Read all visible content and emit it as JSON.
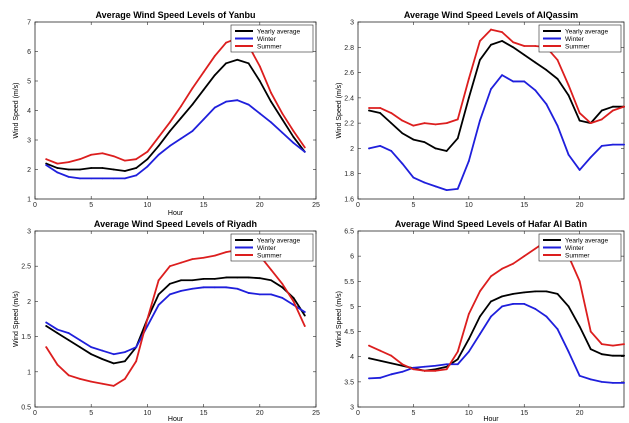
{
  "colors": {
    "yearly": "#000000",
    "winter": "#1f1fdc",
    "summer": "#dc1e1e"
  },
  "chart_data": [
    {
      "type": "line",
      "title": "Average Wind Speed Levels of Yanbu",
      "xlabel": "Hour",
      "ylabel": "Wind Speed (m/s)",
      "xlim": [
        0,
        25
      ],
      "ylim": [
        1,
        7
      ],
      "xticks": [
        0,
        5,
        10,
        15,
        20,
        25
      ],
      "yticks": [
        1,
        2,
        3,
        4,
        5,
        6,
        7
      ],
      "legend_position": "top-right",
      "x": [
        1,
        2,
        3,
        4,
        5,
        6,
        7,
        8,
        9,
        10,
        11,
        12,
        13,
        14,
        15,
        16,
        17,
        18,
        19,
        20,
        21,
        22,
        23,
        24
      ],
      "series": [
        {
          "name": "Yearly average",
          "color_key": "yearly",
          "values": [
            2.2,
            2.05,
            2.0,
            2.0,
            2.05,
            2.05,
            2.0,
            1.95,
            2.05,
            2.35,
            2.8,
            3.3,
            3.75,
            4.2,
            4.7,
            5.2,
            5.6,
            5.72,
            5.6,
            5.0,
            4.3,
            3.7,
            3.1,
            2.6
          ]
        },
        {
          "name": "Winter",
          "color_key": "winter",
          "values": [
            2.15,
            1.9,
            1.75,
            1.7,
            1.7,
            1.7,
            1.7,
            1.7,
            1.8,
            2.1,
            2.5,
            2.8,
            3.05,
            3.3,
            3.7,
            4.1,
            4.3,
            4.35,
            4.2,
            3.9,
            3.6,
            3.25,
            2.9,
            2.6
          ]
        },
        {
          "name": "Summer",
          "color_key": "summer",
          "values": [
            2.35,
            2.2,
            2.25,
            2.35,
            2.5,
            2.55,
            2.45,
            2.3,
            2.35,
            2.6,
            3.1,
            3.6,
            4.15,
            4.75,
            5.3,
            5.85,
            6.3,
            6.45,
            6.2,
            5.5,
            4.6,
            3.9,
            3.3,
            2.75
          ]
        }
      ]
    },
    {
      "type": "line",
      "title": "Average Wind Speed Levels of AlQassim",
      "xlabel": "",
      "ylabel": "Wind Speed (m/s)",
      "xlim": [
        0,
        24
      ],
      "ylim": [
        1.6,
        3
      ],
      "xticks": [
        0,
        5,
        10,
        15,
        20
      ],
      "yticks": [
        1.6,
        1.8,
        2,
        2.2,
        2.4,
        2.6,
        2.8,
        3
      ],
      "legend_position": "top-right",
      "x": [
        1,
        2,
        3,
        4,
        5,
        6,
        7,
        8,
        9,
        10,
        11,
        12,
        13,
        14,
        15,
        16,
        17,
        18,
        19,
        20,
        21,
        22,
        23,
        24
      ],
      "series": [
        {
          "name": "Yearly average",
          "color_key": "yearly",
          "values": [
            2.3,
            2.28,
            2.2,
            2.12,
            2.07,
            2.05,
            2.0,
            1.98,
            2.08,
            2.4,
            2.7,
            2.82,
            2.85,
            2.8,
            2.74,
            2.68,
            2.62,
            2.55,
            2.42,
            2.22,
            2.2,
            2.3,
            2.33,
            2.33
          ]
        },
        {
          "name": "Winter",
          "color_key": "winter",
          "values": [
            2.0,
            2.02,
            1.98,
            1.88,
            1.77,
            1.73,
            1.7,
            1.67,
            1.68,
            1.9,
            2.22,
            2.47,
            2.58,
            2.53,
            2.53,
            2.46,
            2.35,
            2.18,
            1.95,
            1.83,
            1.93,
            2.02,
            2.03,
            2.03
          ]
        },
        {
          "name": "Summer",
          "color_key": "summer",
          "values": [
            2.32,
            2.32,
            2.28,
            2.22,
            2.18,
            2.2,
            2.19,
            2.2,
            2.23,
            2.55,
            2.85,
            2.94,
            2.92,
            2.84,
            2.81,
            2.81,
            2.8,
            2.7,
            2.5,
            2.28,
            2.2,
            2.23,
            2.3,
            2.33
          ]
        }
      ]
    },
    {
      "type": "line",
      "title": "Average Wind Speed Levels of Riyadh",
      "xlabel": "Hour",
      "ylabel": "Wind Speed (m/s)",
      "xlim": [
        0,
        25
      ],
      "ylim": [
        0.5,
        3
      ],
      "xticks": [
        0,
        5,
        10,
        15,
        20,
        25
      ],
      "yticks": [
        0.5,
        1,
        1.5,
        2,
        2.5,
        3
      ],
      "legend_position": "top-right",
      "x": [
        1,
        2,
        3,
        4,
        5,
        6,
        7,
        8,
        9,
        10,
        11,
        12,
        13,
        14,
        15,
        16,
        17,
        18,
        19,
        20,
        21,
        22,
        23,
        24
      ],
      "series": [
        {
          "name": "Yearly average",
          "color_key": "yearly",
          "values": [
            1.65,
            1.55,
            1.45,
            1.35,
            1.25,
            1.18,
            1.12,
            1.15,
            1.35,
            1.75,
            2.1,
            2.25,
            2.3,
            2.3,
            2.32,
            2.32,
            2.34,
            2.34,
            2.34,
            2.33,
            2.3,
            2.2,
            2.05,
            1.8
          ]
        },
        {
          "name": "Winter",
          "color_key": "winter",
          "values": [
            1.7,
            1.6,
            1.55,
            1.45,
            1.35,
            1.3,
            1.25,
            1.28,
            1.35,
            1.65,
            1.95,
            2.1,
            2.15,
            2.18,
            2.2,
            2.2,
            2.2,
            2.18,
            2.12,
            2.1,
            2.1,
            2.05,
            1.95,
            1.85
          ]
        },
        {
          "name": "Summer",
          "color_key": "summer",
          "values": [
            1.35,
            1.1,
            0.95,
            0.9,
            0.86,
            0.83,
            0.8,
            0.9,
            1.15,
            1.75,
            2.3,
            2.5,
            2.55,
            2.6,
            2.62,
            2.65,
            2.7,
            2.73,
            2.72,
            2.65,
            2.45,
            2.25,
            2.0,
            1.65
          ]
        }
      ]
    },
    {
      "type": "line",
      "title": "Average Wind Speed Levels of Hafar Al Batin",
      "xlabel": "Hour",
      "ylabel": "Wind Speed (m/s)",
      "xlim": [
        0,
        24
      ],
      "ylim": [
        3,
        6.5
      ],
      "xticks": [
        0,
        5,
        10,
        15,
        20
      ],
      "yticks": [
        3,
        3.5,
        4,
        4.5,
        5,
        5.5,
        6,
        6.5
      ],
      "legend_position": "top-right",
      "x": [
        1,
        2,
        3,
        4,
        5,
        6,
        7,
        8,
        9,
        10,
        11,
        12,
        13,
        14,
        15,
        16,
        17,
        18,
        19,
        20,
        21,
        22,
        23,
        24
      ],
      "series": [
        {
          "name": "Yearly average",
          "color_key": "yearly",
          "values": [
            3.97,
            3.92,
            3.87,
            3.82,
            3.77,
            3.72,
            3.75,
            3.8,
            3.95,
            4.35,
            4.8,
            5.1,
            5.2,
            5.25,
            5.28,
            5.3,
            5.3,
            5.25,
            5.0,
            4.6,
            4.15,
            4.05,
            4.02,
            4.02
          ]
        },
        {
          "name": "Winter",
          "color_key": "winter",
          "values": [
            3.57,
            3.58,
            3.65,
            3.7,
            3.78,
            3.8,
            3.82,
            3.85,
            3.85,
            4.1,
            4.45,
            4.8,
            5.0,
            5.05,
            5.05,
            4.95,
            4.8,
            4.55,
            4.1,
            3.62,
            3.55,
            3.5,
            3.48,
            3.48
          ]
        },
        {
          "name": "Summer",
          "color_key": "summer",
          "values": [
            4.22,
            4.12,
            4.02,
            3.85,
            3.75,
            3.72,
            3.72,
            3.75,
            4.1,
            4.85,
            5.3,
            5.6,
            5.75,
            5.85,
            6.0,
            6.15,
            6.3,
            6.35,
            6.0,
            5.5,
            4.5,
            4.25,
            4.22,
            4.25
          ]
        }
      ]
    }
  ]
}
